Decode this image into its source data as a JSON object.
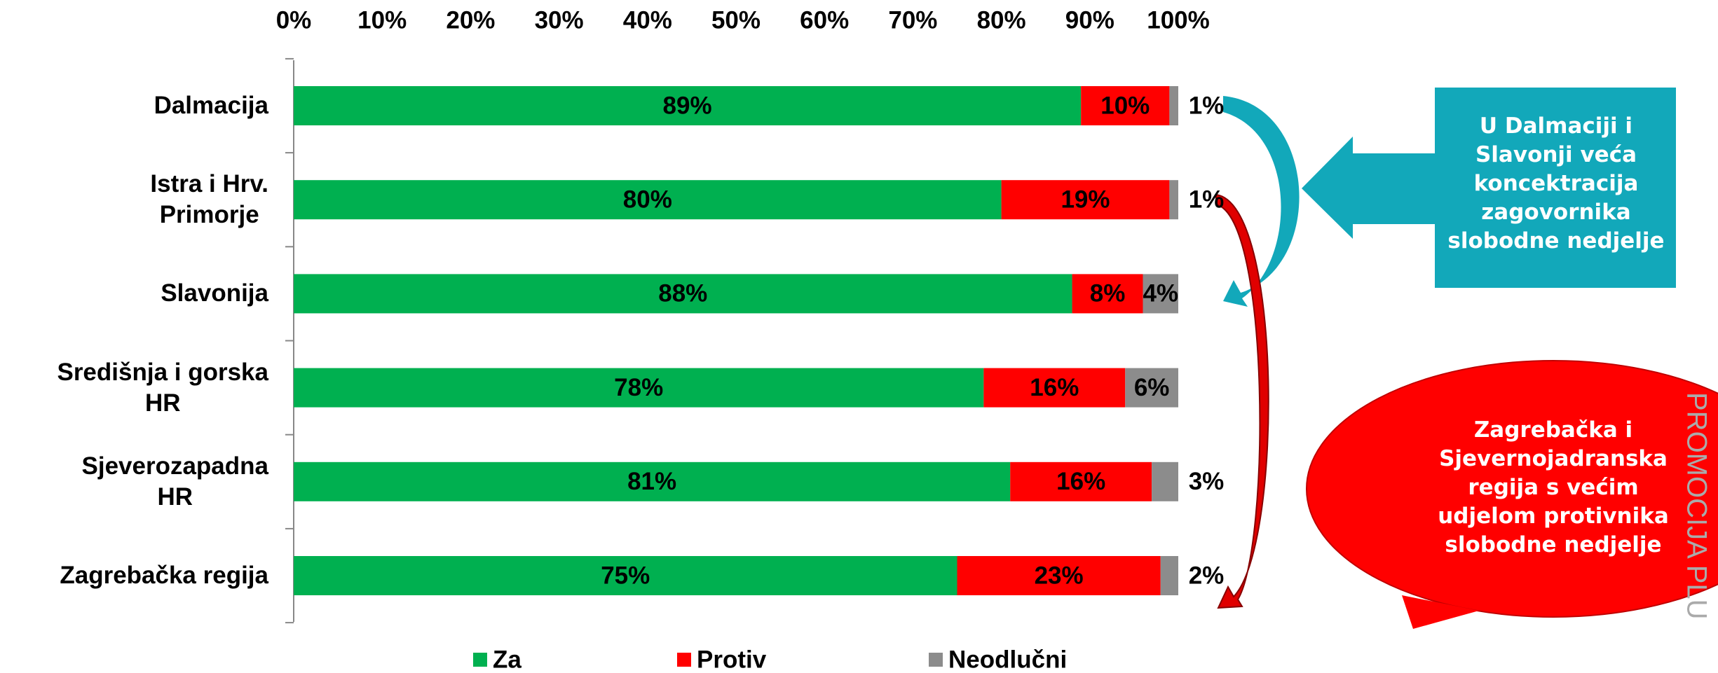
{
  "chart_data": {
    "type": "stacked_barh",
    "categories": [
      "Dalmacija",
      "Istra i Hrv.\nPrimorje",
      "Slavonija",
      "Središnja i gorska\nHR",
      "Sjeverozapadna\nHR",
      "Zagrebačka regija"
    ],
    "series": [
      {
        "name": "Za",
        "color": "#00b050",
        "values": [
          89,
          80,
          88,
          78,
          81,
          75
        ],
        "value_labels": [
          "89%",
          "80%",
          "88%",
          "78%",
          "81%",
          "75%"
        ]
      },
      {
        "name": "Protiv",
        "color": "#ff0000",
        "values": [
          10,
          19,
          8,
          16,
          16,
          23
        ],
        "value_labels": [
          "10%",
          "19%",
          "8%",
          "16%",
          "16%",
          "23%"
        ]
      },
      {
        "name": "Neodlučni",
        "color": "#8c8c8c",
        "values": [
          1,
          1,
          4,
          6,
          3,
          2
        ],
        "value_labels": [
          "1%",
          "1%",
          "4%",
          "6%",
          "3%",
          "2%"
        ]
      }
    ],
    "xlim": [
      0,
      100
    ],
    "xticks": [
      {
        "value": 0,
        "label": "0%"
      },
      {
        "value": 10,
        "label": "10%"
      },
      {
        "value": 20,
        "label": "20%"
      },
      {
        "value": 30,
        "label": "30%"
      },
      {
        "value": 40,
        "label": "40%"
      },
      {
        "value": 50,
        "label": "50%"
      },
      {
        "value": 60,
        "label": "60%"
      },
      {
        "value": 70,
        "label": "70%"
      },
      {
        "value": 80,
        "label": "80%"
      },
      {
        "value": 90,
        "label": "90%"
      },
      {
        "value": 100,
        "label": "100%"
      }
    ],
    "legend": "bottom",
    "annotations": [
      "U Dalmaciji i Slavonji veća koncektracija zagovornika slobodne nedjelje",
      "Zagrebačka i Sjevernojadranska regija s većim udjelom protivnika slobodne nedjelje"
    ]
  },
  "logo": "PROMOCIJA PLU"
}
